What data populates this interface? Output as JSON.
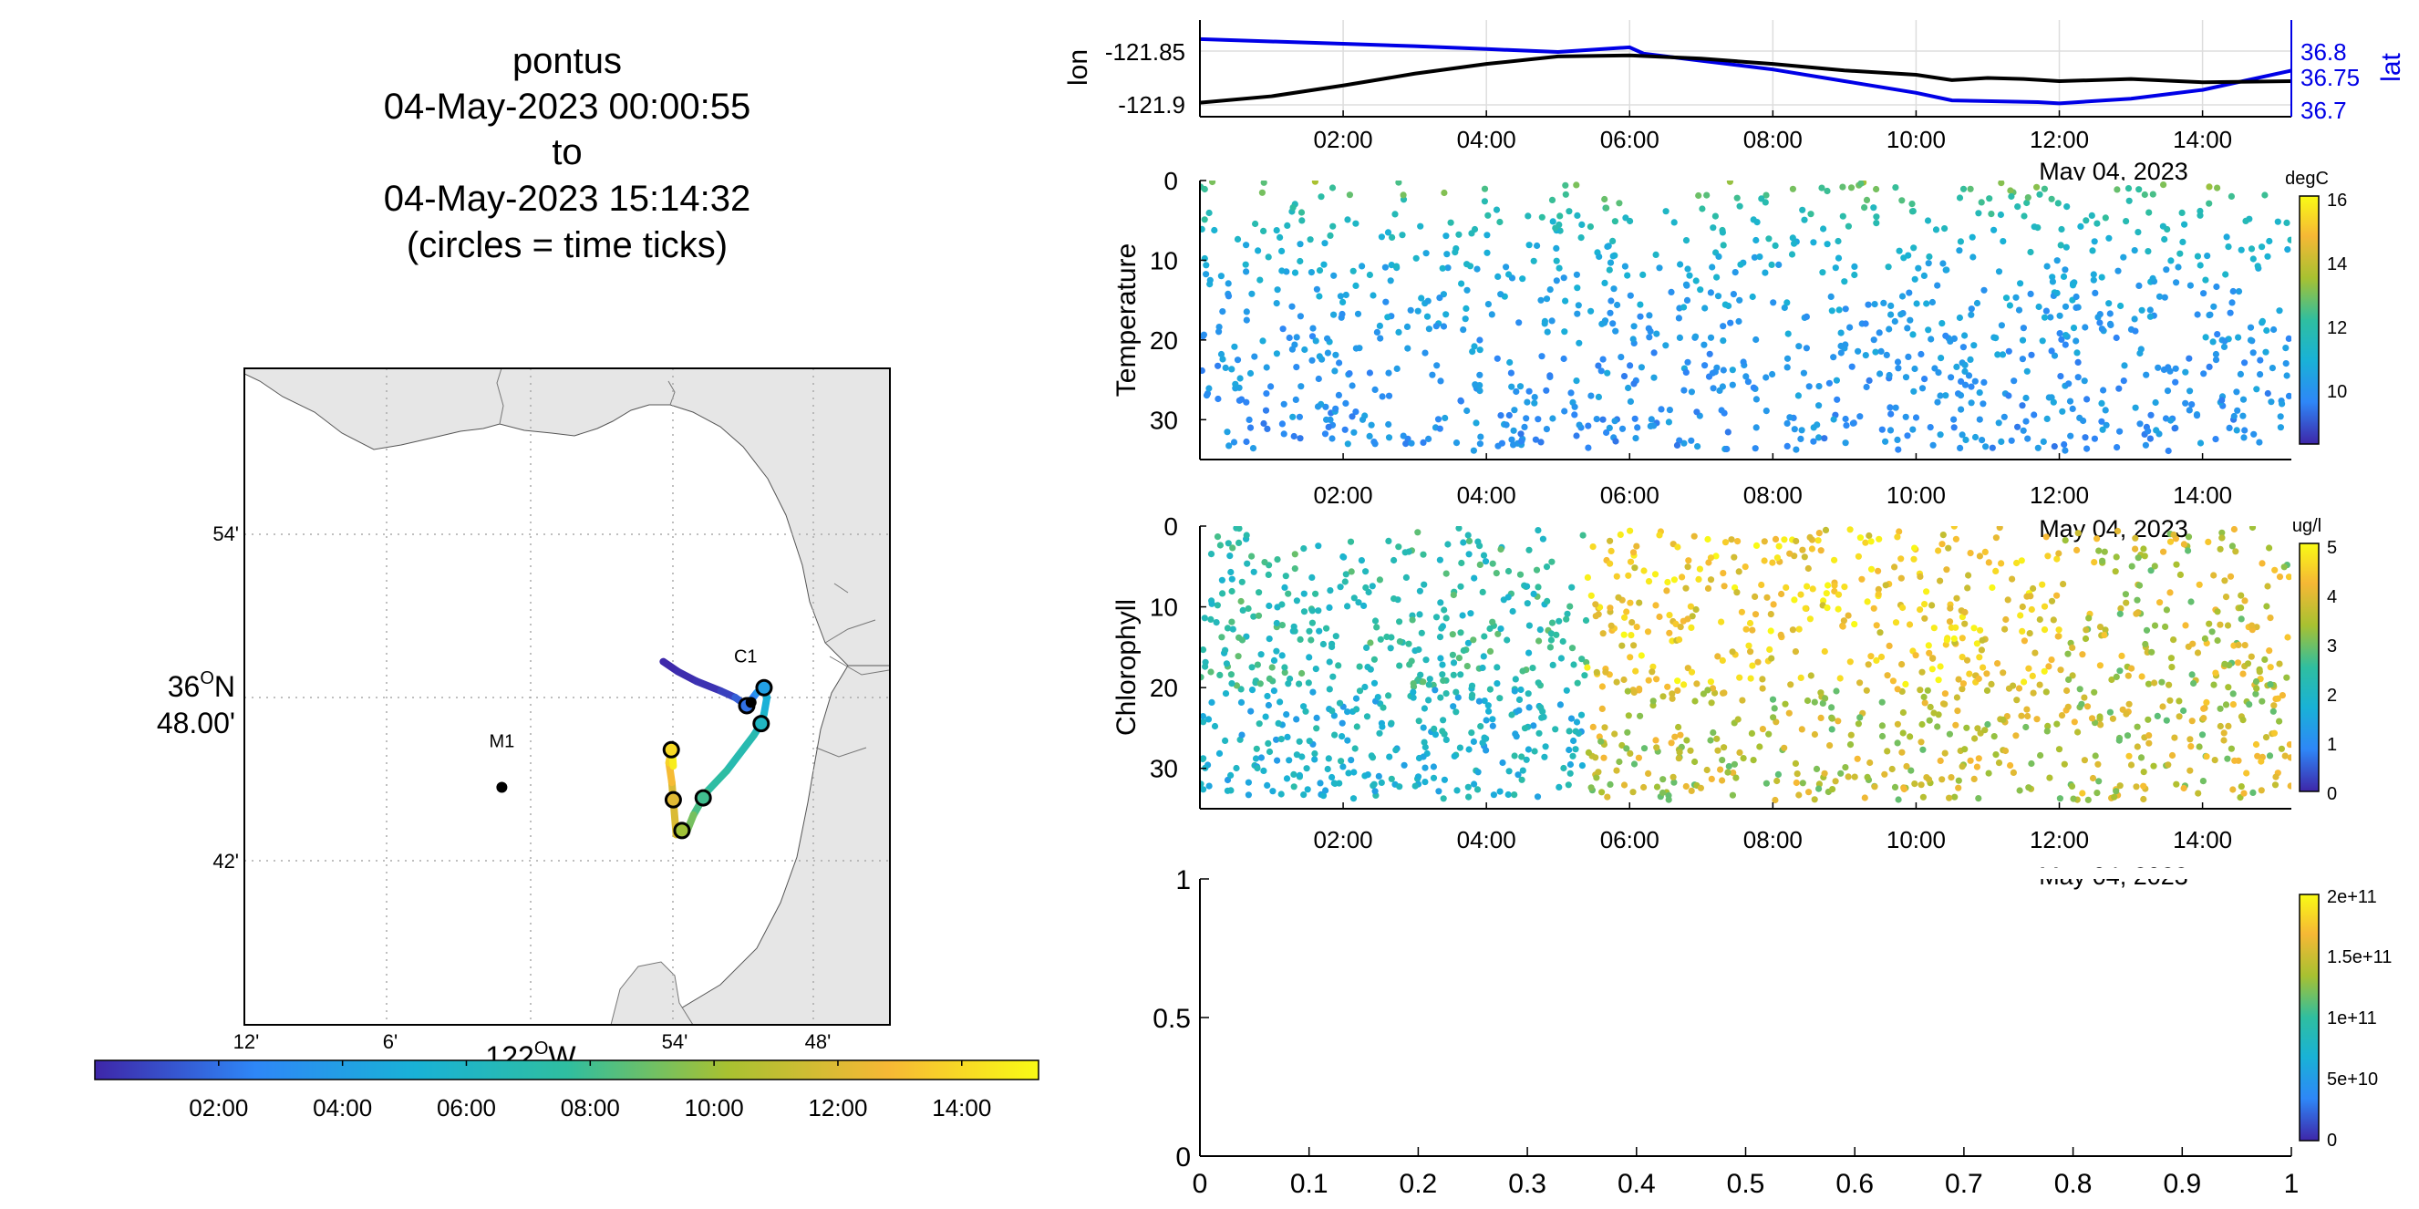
{
  "title": {
    "lines": [
      "pontus",
      "04-May-2023 00:00:55",
      "to",
      "04-May-2023 15:14:32",
      "(circles = time ticks)"
    ]
  },
  "map": {
    "lat_ticks": [
      "54'",
      "42'"
    ],
    "lat_center_deg": "36",
    "lat_center_sup": "O",
    "lat_center_suffix": "N",
    "lat_center_min": "48.00'",
    "lon_ticks": [
      "12'",
      "6'",
      "54'",
      "48'"
    ],
    "lon_center_deg": "122",
    "lon_center_sup": "O",
    "lon_center_suffix": "W",
    "stations": [
      {
        "name": "M1",
        "lat": 36.745,
        "lon": -122.02
      },
      {
        "name": "C1",
        "lat": 36.797,
        "lon": -121.847
      }
    ],
    "colormap": [
      "#3e26a8",
      "#2e87f7",
      "#19b2d6",
      "#2fbea0",
      "#a8c131",
      "#f6b835",
      "#f9fb15"
    ],
    "land_color": "#e6e6e6",
    "track": [
      {
        "t": 0.02,
        "lat": 36.822,
        "lon": -121.908
      },
      {
        "t": 0.12,
        "lat": 36.816,
        "lon": -121.898
      },
      {
        "t": 0.25,
        "lat": 36.81,
        "lon": -121.885
      },
      {
        "t": 0.4,
        "lat": 36.804,
        "lon": -121.868
      },
      {
        "t": 1.0,
        "lat": 36.8,
        "lon": -121.858
      },
      {
        "t": 2.0,
        "lat": 36.795,
        "lon": -121.85
      },
      {
        "t": 3.0,
        "lat": 36.803,
        "lon": -121.843
      },
      {
        "t": 4.0,
        "lat": 36.806,
        "lon": -121.838
      },
      {
        "t": 4.5,
        "lat": 36.8,
        "lon": -121.836
      },
      {
        "t": 5.5,
        "lat": 36.79,
        "lon": -121.838
      },
      {
        "t": 6.0,
        "lat": 36.784,
        "lon": -121.84
      },
      {
        "t": 6.5,
        "lat": 36.777,
        "lon": -121.845
      },
      {
        "t": 7.2,
        "lat": 36.755,
        "lon": -121.864
      },
      {
        "t": 7.8,
        "lat": 36.742,
        "lon": -121.878
      },
      {
        "t": 8.6,
        "lat": 36.728,
        "lon": -121.887
      },
      {
        "t": 9.6,
        "lat": 36.717,
        "lon": -121.892
      },
      {
        "t": 10.4,
        "lat": 36.72,
        "lon": -121.898
      },
      {
        "t": 11.2,
        "lat": 36.716,
        "lon": -121.899
      },
      {
        "t": 12.4,
        "lat": 36.748,
        "lon": -121.902
      },
      {
        "t": 13.2,
        "lat": 36.76,
        "lon": -121.904
      },
      {
        "t": 14.2,
        "lat": 36.77,
        "lon": -121.902
      },
      {
        "t": 15.24,
        "lat": 36.758,
        "lon": -121.901
      }
    ],
    "time_tick_hours": [
      2,
      4,
      6,
      8,
      10,
      12,
      14
    ]
  },
  "colorbar_time": {
    "ticks": [
      "02:00",
      "04:00",
      "06:00",
      "08:00",
      "10:00",
      "12:00",
      "14:00"
    ]
  },
  "panels": {
    "lonlat": {
      "ylabel_left": "lon",
      "ylabel_right": "lat",
      "left_ticks": [
        "-121.85",
        "-121.9"
      ],
      "right_ticks": [
        "36.8",
        "36.75",
        "36.7"
      ],
      "lon_color": "#000000",
      "lat_color": "#0000e6"
    },
    "time_ticks": [
      "02:00",
      "04:00",
      "06:00",
      "08:00",
      "10:00",
      "12:00",
      "14:00"
    ],
    "date_label": "May 04, 2023",
    "temperature": {
      "ylabel": "Temperature",
      "y_ticks": [
        "0",
        "10",
        "20",
        "30"
      ],
      "unit": "degC",
      "cbar_ticks": [
        "16",
        "14",
        "12",
        "10"
      ]
    },
    "chlorophyll": {
      "ylabel": "Chlorophyll",
      "y_ticks": [
        "0",
        "10",
        "20",
        "30"
      ],
      "unit": "ug/l",
      "cbar_ticks": [
        "5",
        "4",
        "3",
        "2",
        "1",
        "0"
      ]
    },
    "empty": {
      "y_ticks": [
        "1",
        "0.5",
        "0"
      ],
      "x_ticks": [
        "0",
        "0.1",
        "0.2",
        "0.3",
        "0.4",
        "0.5",
        "0.6",
        "0.7",
        "0.8",
        "0.9",
        "1"
      ],
      "cbar_ticks": [
        "2e+11",
        "1.5e+11",
        "1e+11",
        "5e+10",
        "0"
      ]
    }
  },
  "chart_data": [
    {
      "type": "line",
      "x_unit": "hours since 04-May-2023 00:00",
      "series": [
        {
          "name": "lon",
          "x": [
            0,
            1,
            2,
            3,
            4,
            5,
            6,
            7,
            8,
            9,
            10,
            10.5,
            11,
            11.5,
            12,
            13,
            14,
            15.24
          ],
          "y": [
            -121.898,
            -121.892,
            -121.882,
            -121.871,
            -121.862,
            -121.855,
            -121.854,
            -121.857,
            -121.862,
            -121.868,
            -121.872,
            -121.877,
            -121.875,
            -121.876,
            -121.878,
            -121.876,
            -121.879,
            -121.878
          ]
        },
        {
          "name": "lat",
          "x": [
            0,
            1,
            2,
            3,
            4,
            5,
            6,
            6.2,
            7,
            8,
            9,
            10,
            10.5,
            11.7,
            12,
            13,
            14,
            15.24
          ],
          "y": [
            36.822,
            36.818,
            36.814,
            36.81,
            36.805,
            36.8,
            36.808,
            36.797,
            36.785,
            36.77,
            36.75,
            36.73,
            36.717,
            36.714,
            36.712,
            36.72,
            36.735,
            36.768
          ]
        }
      ],
      "ylim_left": [
        -121.905,
        -121.83
      ],
      "ylim_right": [
        36.7,
        36.835
      ],
      "xlim": [
        0,
        15.24
      ]
    },
    {
      "type": "scatter",
      "ylabel": "Temperature",
      "x_unit": "hours since 04-May-2023 00:00",
      "xlim": [
        0,
        15.24
      ],
      "ylim": [
        0,
        35
      ],
      "y_reversed": true,
      "color_label": "degC",
      "color_range": [
        8,
        16
      ],
      "points_generator": "depth-time profile, surface warmer (13-14 degC) near 0-10 m, cooler (9-10 degC) below 20 m"
    },
    {
      "type": "scatter",
      "ylabel": "Chlorophyll",
      "x_unit": "hours since 04-May-2023 00:00",
      "xlim": [
        0,
        15.24
      ],
      "ylim": [
        0,
        35
      ],
      "y_reversed": true,
      "color_label": "ug/l",
      "color_range": [
        0,
        5
      ],
      "points_generator": "low (1-2 ug/l) before 05:30, high (4-5 ug/l) 06:00-12:00 near surface, moderate (3-4) afterwards"
    },
    {
      "type": "scatter",
      "xlim": [
        0,
        1
      ],
      "ylim": [
        0,
        1
      ],
      "color_range": [
        0,
        200000000000
      ],
      "series": []
    }
  ]
}
